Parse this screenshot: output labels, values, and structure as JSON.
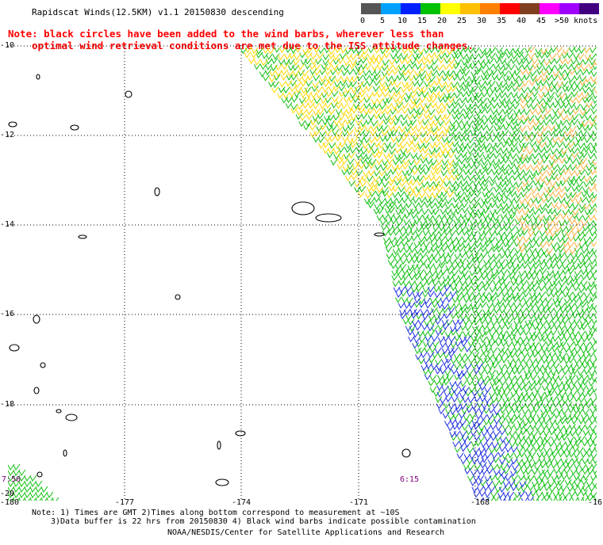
{
  "title": "Rapidscat Winds(12.5KM) v1.1 20150830 descending",
  "note_lines": [
    "Note: black circles have been added to the wind barbs, wherever less than",
    "optimal wind retrieval conditions are met due to the ISS attitude changes."
  ],
  "legend": {
    "colors": [
      "#555555",
      "#00a0ff",
      "#0020ff",
      "#00c000",
      "#ffff00",
      "#ffc000",
      "#ff8000",
      "#ff0000",
      "#804020",
      "#ff00ff",
      "#a000ff",
      "#400080"
    ],
    "labels": [
      "0",
      "5",
      "10",
      "15",
      "20",
      "25",
      "30",
      "35",
      "40",
      "45",
      ">50 knots"
    ]
  },
  "axes": {
    "lat_labels": [
      "-10",
      "-12",
      "-14",
      "-16",
      "-18",
      "-20"
    ],
    "lon_labels": [
      "-180",
      "-177",
      "-174",
      "-171",
      "-168",
      "-16"
    ]
  },
  "pass_times": [
    "7:50",
    "6:15"
  ],
  "footer": [
    "Note: 1) Times are GMT 2)Times along bottom correspond to measurement at ~10S",
    "3)Data buffer is 22 hrs from 20150830 4) Black wind barbs indicate possible contamination",
    "NOAA/NESDIS/Center for Satellite Applications and Research"
  ],
  "colors": {
    "note": "#ff0000",
    "time_label": "#800080",
    "grid": "#000000"
  }
}
